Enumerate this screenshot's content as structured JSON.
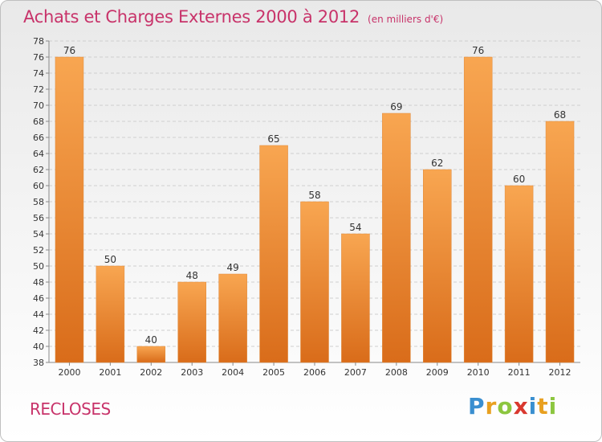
{
  "header": {
    "title": "Achats et Charges Externes 2000 à 2012",
    "unit": "(en milliers d'€)"
  },
  "footer": {
    "commune": "RECLOSES",
    "logo": {
      "letters": [
        "P",
        "r",
        "o",
        "x",
        "i",
        "t",
        "i"
      ],
      "colors": [
        "#3a8fd0",
        "#e8a020",
        "#8cc63f",
        "#d9382f",
        "#3a8fd0",
        "#e8a020",
        "#8cc63f"
      ]
    }
  },
  "colors": {
    "bar_light": "#f8a651",
    "bar_dark": "#d96c1a",
    "text": "#333333",
    "accent": "#c8336a"
  },
  "chart_data": {
    "type": "bar",
    "title": "Achats et Charges Externes 2000 à 2012",
    "categories": [
      "2000",
      "2001",
      "2002",
      "2003",
      "2004",
      "2005",
      "2006",
      "2007",
      "2008",
      "2009",
      "2010",
      "2011",
      "2012"
    ],
    "values": [
      76,
      50,
      40,
      48,
      49,
      65,
      58,
      54,
      69,
      62,
      76,
      60,
      68
    ],
    "ylim": [
      38,
      78
    ],
    "yticks": [
      38,
      40,
      42,
      44,
      46,
      48,
      50,
      52,
      54,
      56,
      58,
      60,
      62,
      64,
      66,
      68,
      70,
      72,
      74,
      76,
      78
    ],
    "grid": true,
    "xlabel": "",
    "ylabel": ""
  }
}
